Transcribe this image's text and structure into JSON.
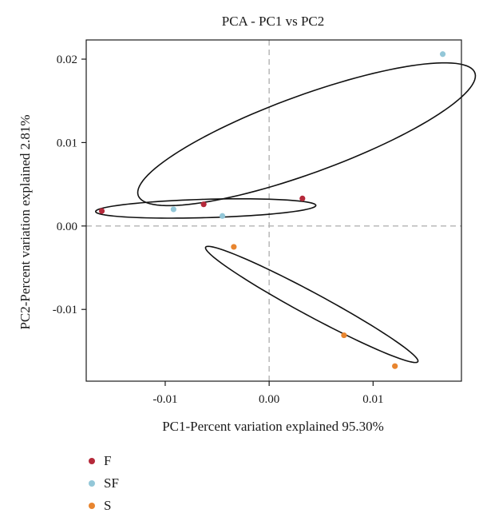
{
  "chart_data": {
    "type": "scatter",
    "title": "PCA - PC1 vs PC2",
    "xlabel": "PC1-Percent variation explained 95.30%",
    "ylabel": "PC2-Percent variation explained 2.81%",
    "xlim": [
      -0.0176,
      0.0185
    ],
    "ylim": [
      -0.0186,
      0.0223
    ],
    "x_ticks": [
      {
        "value": -0.01,
        "label": "-0.01"
      },
      {
        "value": 0.0,
        "label": "0.00"
      },
      {
        "value": 0.01,
        "label": "0.01"
      }
    ],
    "y_ticks": [
      {
        "value": -0.01,
        "label": "-0.01"
      },
      {
        "value": 0.0,
        "label": "0.00"
      },
      {
        "value": 0.01,
        "label": "0.01"
      },
      {
        "value": 0.02,
        "label": "0.02"
      }
    ],
    "reference_lines": {
      "x": 0.0,
      "y": 0.0,
      "style": "dashed"
    },
    "grid": false,
    "legend_position": "bottom-left",
    "series": [
      {
        "name": "F",
        "color": "#b5293a",
        "points": [
          [
            -0.0161,
            0.0018
          ],
          [
            -0.0063,
            0.0026
          ],
          [
            0.0032,
            0.0033
          ]
        ]
      },
      {
        "name": "SF",
        "color": "#93c7d8",
        "points": [
          [
            -0.0092,
            0.002
          ],
          [
            -0.0045,
            0.0012
          ],
          [
            0.0167,
            0.0206
          ]
        ]
      },
      {
        "name": "S",
        "color": "#e8852f",
        "points": [
          [
            -0.0034,
            -0.0025
          ],
          [
            0.0072,
            -0.0131
          ],
          [
            0.0121,
            -0.0168
          ]
        ]
      }
    ],
    "ellipses": [
      {
        "group": "F",
        "center": [
          -0.0061,
          0.0021
        ],
        "semi_axes": [
          0.0106,
          0.0011
        ],
        "angle_deg": 2
      },
      {
        "group": "SF",
        "center": [
          0.0036,
          0.011
        ],
        "semi_axes": [
          0.0178,
          0.0045
        ],
        "angle_deg": 25
      },
      {
        "group": "S",
        "center": [
          0.0041,
          -0.0094
        ],
        "semi_axes": [
          0.0123,
          0.0013
        ],
        "angle_deg": -34
      }
    ]
  }
}
